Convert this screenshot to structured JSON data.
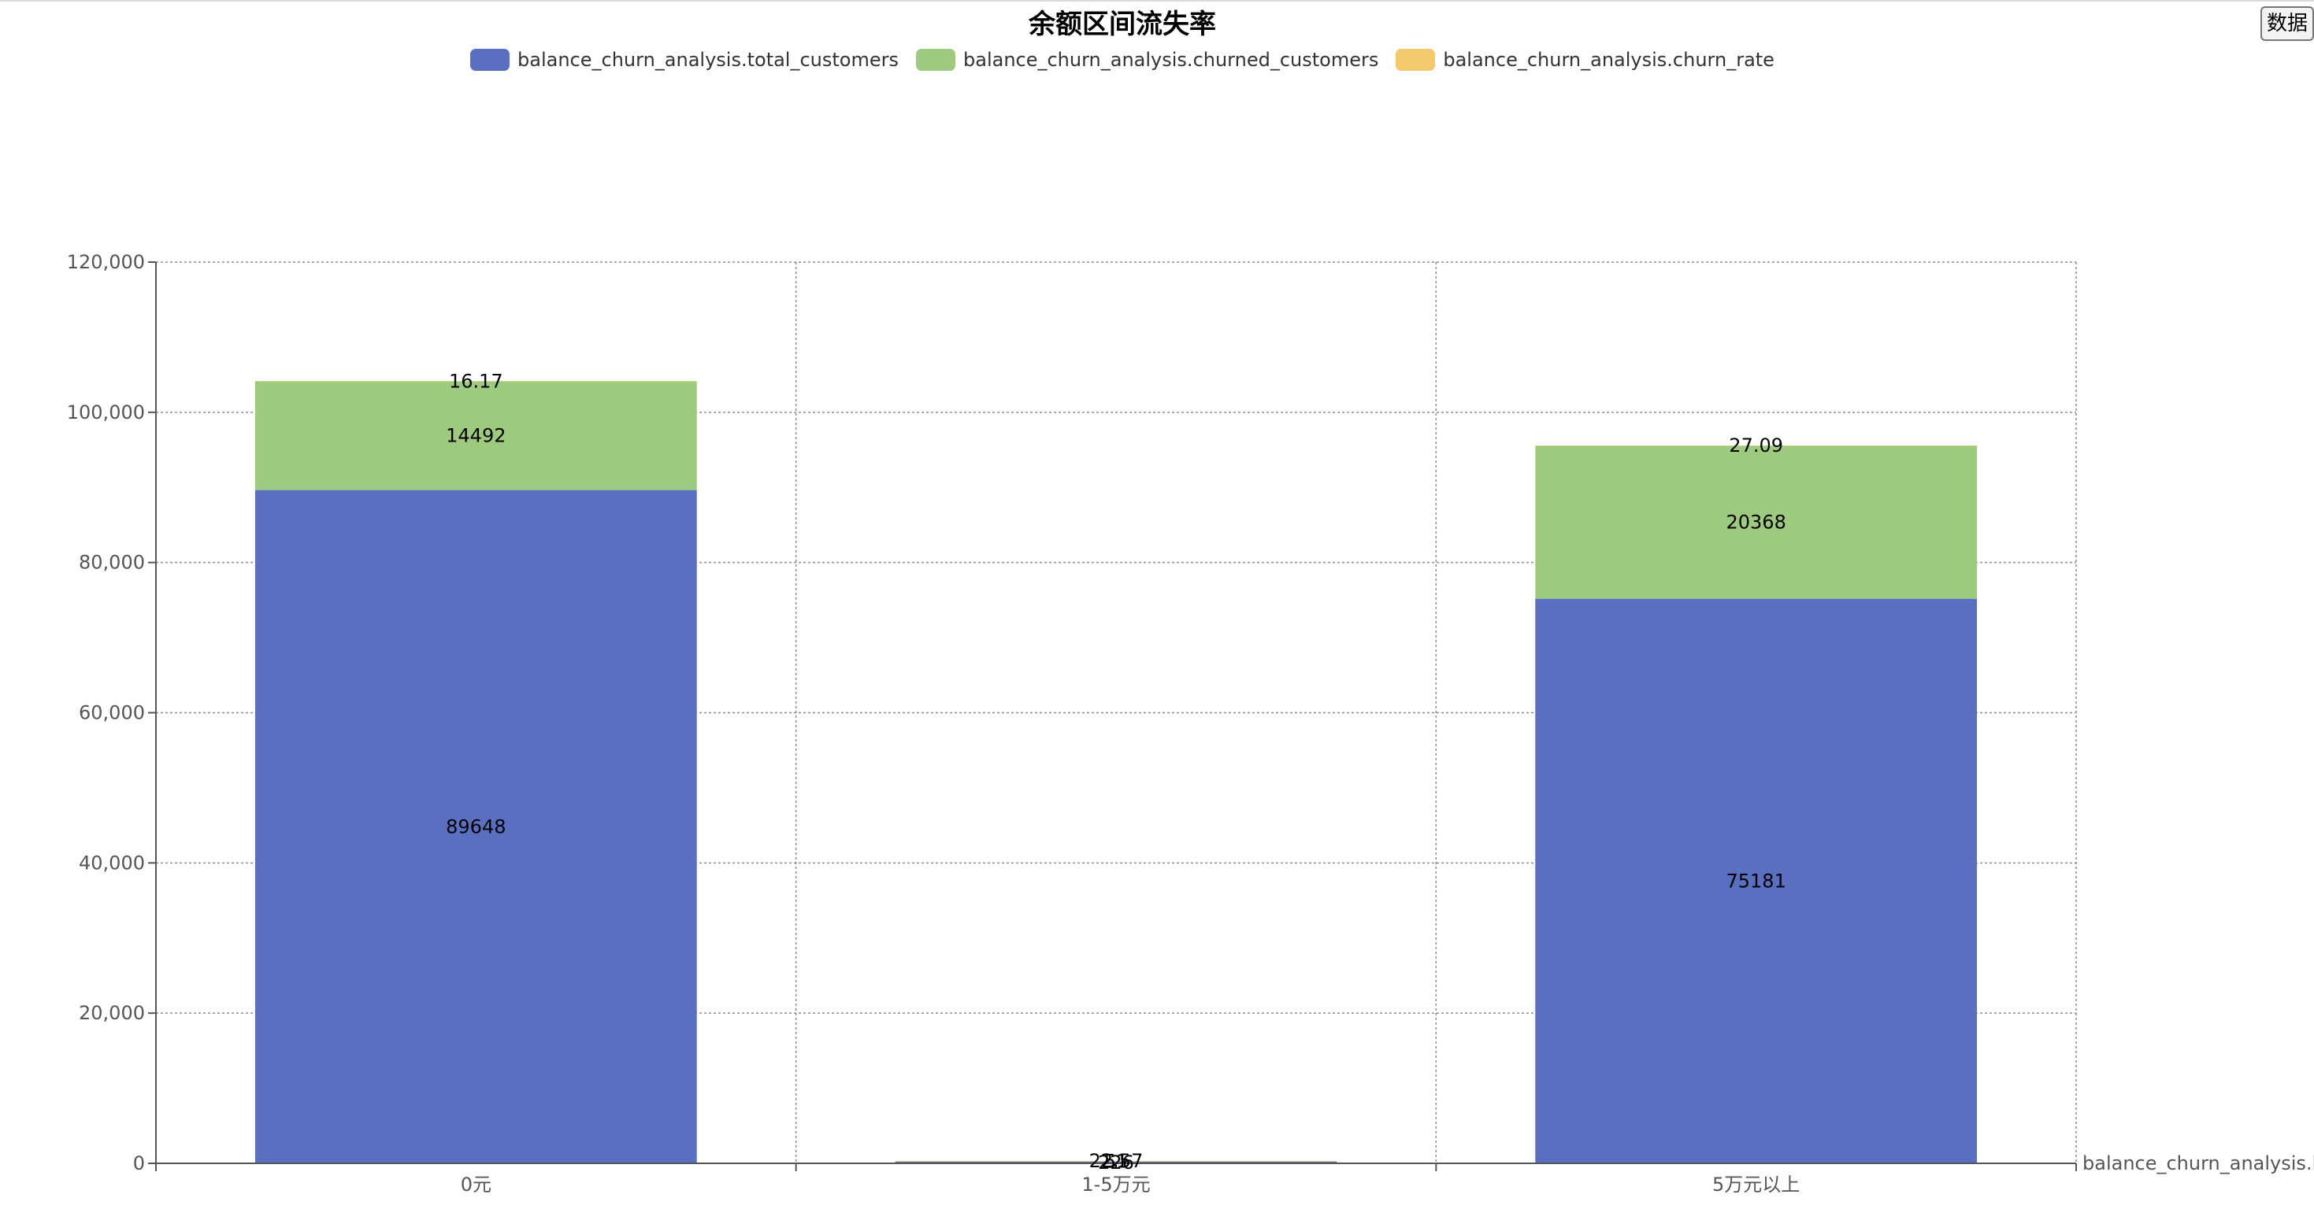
{
  "chart_data": {
    "type": "bar",
    "title": "余额区间流失率",
    "categories": [
      "0元",
      "1-5万元",
      "5万元以上"
    ],
    "series": [
      {
        "name": "balance_churn_analysis.total_customers",
        "values": [
          89648,
          226,
          75181
        ],
        "labels": [
          "89648",
          "226",
          "75181"
        ],
        "color": "#5a6fc0"
      },
      {
        "name": "balance_churn_analysis.churned_customers",
        "values": [
          14492,
          51,
          20368
        ],
        "labels": [
          "14492",
          "51",
          "20368"
        ],
        "color": "#9eca7f"
      },
      {
        "name": "balance_churn_analysis.churn_rate",
        "values": [
          16.17,
          22.57,
          27.09
        ],
        "labels": [
          "16.17",
          "22.57",
          "27.09"
        ],
        "color": "#f2ca6b"
      }
    ],
    "stacked": true,
    "ylim": [
      0,
      120000
    ],
    "yticks": [
      0,
      20000,
      40000,
      60000,
      80000,
      100000,
      120000
    ],
    "ytick_labels": [
      "0",
      "20,000",
      "40,000",
      "60,000",
      "80,000",
      "100,000",
      "120,000"
    ],
    "xlabel": "balance_churn_analysis.ba",
    "ylabel": "",
    "grid": true,
    "legend_position": "top-center"
  },
  "toolbar": {
    "data_button_label": "数据"
  }
}
